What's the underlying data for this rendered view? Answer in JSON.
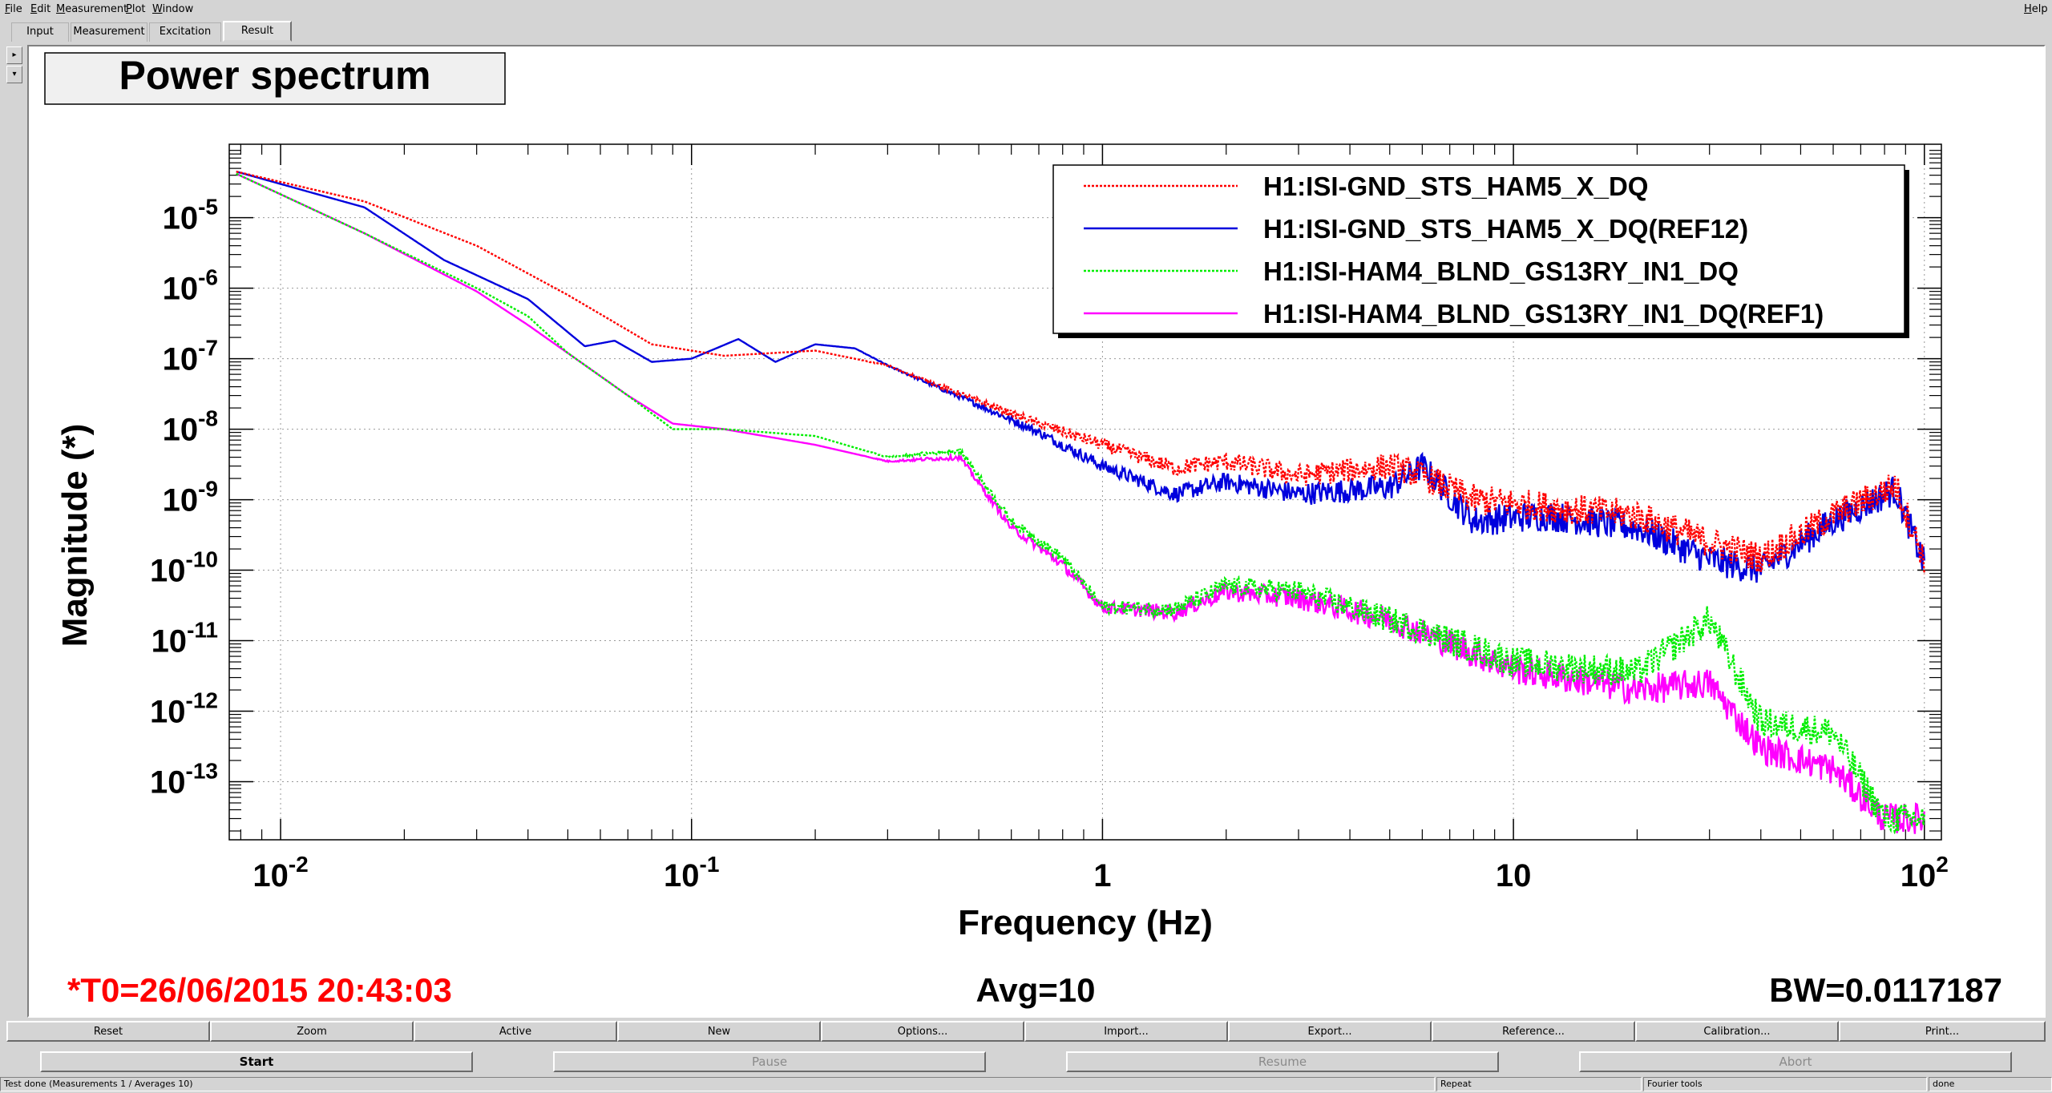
{
  "menubar": {
    "items": [
      "File",
      "Edit",
      "Measurement",
      "Plot",
      "Window"
    ],
    "help": "Help"
  },
  "tabs": [
    "Input",
    "Measurement",
    "Excitation",
    "Result"
  ],
  "active_tab": "Result",
  "plot": {
    "title": "Power spectrum",
    "footer": {
      "t0": "*T0=26/06/2015 20:43:03",
      "avg": "Avg=10",
      "bw": "BW=0.0117187"
    },
    "colors": {
      "ch1": "#ff0000",
      "ch2": "#0000dd",
      "ch3": "#00ee00",
      "ch4": "#ff00ff",
      "t0_text": "#ff0000"
    }
  },
  "chart_data": {
    "type": "line",
    "title": "",
    "xlabel": "Frequency (Hz)",
    "ylabel": "Magnitude (*)",
    "x_scale": "log",
    "y_scale": "log",
    "xlim": [
      0.0075,
      110
    ],
    "ylim": [
      1.5e-14,
      0.00011
    ],
    "x_tick_labels": [
      {
        "base": "10",
        "exp": "-2"
      },
      {
        "base": "10",
        "exp": "-1"
      },
      {
        "base": "1",
        "exp": ""
      },
      {
        "base": "10",
        "exp": ""
      },
      {
        "base": "10",
        "exp": "2"
      }
    ],
    "y_tick_labels": [
      {
        "base": "10",
        "exp": "-13"
      },
      {
        "base": "10",
        "exp": "-12"
      },
      {
        "base": "10",
        "exp": "-11"
      },
      {
        "base": "10",
        "exp": "-10"
      },
      {
        "base": "10",
        "exp": "-9"
      },
      {
        "base": "10",
        "exp": "-8"
      },
      {
        "base": "10",
        "exp": "-7"
      },
      {
        "base": "10",
        "exp": "-6"
      },
      {
        "base": "10",
        "exp": "-5"
      }
    ],
    "grid": true,
    "legend_position": "top-right",
    "series": [
      {
        "name": "H1:ISI-GND_STS_HAM5_X_DQ",
        "style": "dotted",
        "points": [
          [
            0.0078,
            4.5e-05
          ],
          [
            0.016,
            1.7e-05
          ],
          [
            0.03,
            4e-06
          ],
          [
            0.05,
            8e-07
          ],
          [
            0.08,
            1.6e-07
          ],
          [
            0.12,
            1.1e-07
          ],
          [
            0.2,
            1.3e-07
          ],
          [
            0.3,
            8e-08
          ],
          [
            0.5,
            2.5e-08
          ],
          [
            0.7,
            1.2e-08
          ],
          [
            1,
            6e-09
          ],
          [
            1.5,
            2.8e-09
          ],
          [
            2,
            3.5e-09
          ],
          [
            3,
            2.2e-09
          ],
          [
            5,
            3e-09
          ],
          [
            6,
            2.2e-09
          ],
          [
            8,
            1e-09
          ],
          [
            12,
            8e-10
          ],
          [
            20,
            6e-10
          ],
          [
            30,
            2.5e-10
          ],
          [
            40,
            1.5e-10
          ],
          [
            60,
            6e-10
          ],
          [
            85,
            1.6e-09
          ],
          [
            100,
            1.4e-10
          ]
        ]
      },
      {
        "name": "H1:ISI-GND_STS_HAM5_X_DQ(REF12)",
        "style": "solid",
        "points": [
          [
            0.0078,
            4.5e-05
          ],
          [
            0.016,
            1.4e-05
          ],
          [
            0.025,
            2.5e-06
          ],
          [
            0.04,
            7e-07
          ],
          [
            0.055,
            1.5e-07
          ],
          [
            0.065,
            1.8e-07
          ],
          [
            0.08,
            9e-08
          ],
          [
            0.1,
            1e-07
          ],
          [
            0.13,
            1.9e-07
          ],
          [
            0.16,
            9e-08
          ],
          [
            0.2,
            1.6e-07
          ],
          [
            0.25,
            1.4e-07
          ],
          [
            0.3,
            8e-08
          ],
          [
            0.5,
            2.2e-08
          ],
          [
            0.7,
            9e-09
          ],
          [
            1,
            3e-09
          ],
          [
            1.5,
            1.2e-09
          ],
          [
            2,
            1.8e-09
          ],
          [
            3,
            1.2e-09
          ],
          [
            5,
            1.5e-09
          ],
          [
            6,
            3e-09
          ],
          [
            8,
            5e-10
          ],
          [
            12,
            6e-10
          ],
          [
            20,
            4e-10
          ],
          [
            30,
            1.4e-10
          ],
          [
            40,
            1e-10
          ],
          [
            60,
            5e-10
          ],
          [
            85,
            1.4e-09
          ],
          [
            100,
            1.2e-10
          ]
        ]
      },
      {
        "name": "H1:ISI-HAM4_BLND_GS13RY_IN1_DQ",
        "style": "dotted",
        "points": [
          [
            0.0078,
            4.2e-05
          ],
          [
            0.016,
            6e-06
          ],
          [
            0.03,
            1e-06
          ],
          [
            0.04,
            4e-07
          ],
          [
            0.05,
            1.2e-07
          ],
          [
            0.07,
            3e-08
          ],
          [
            0.09,
            1e-08
          ],
          [
            0.12,
            1e-08
          ],
          [
            0.2,
            8e-09
          ],
          [
            0.3,
            4e-09
          ],
          [
            0.45,
            5e-09
          ],
          [
            0.6,
            5e-10
          ],
          [
            0.8,
            1.5e-10
          ],
          [
            1,
            3e-11
          ],
          [
            1.5,
            2.8e-11
          ],
          [
            2,
            6e-11
          ],
          [
            3,
            5e-11
          ],
          [
            5,
            2e-11
          ],
          [
            10,
            5e-12
          ],
          [
            20,
            3.5e-12
          ],
          [
            30,
            2e-11
          ],
          [
            40,
            7e-13
          ],
          [
            60,
            5e-13
          ],
          [
            80,
            3e-14
          ],
          [
            100,
            3e-14
          ]
        ]
      },
      {
        "name": "H1:ISI-HAM4_BLND_GS13RY_IN1_DQ(REF1)",
        "style": "solid",
        "points": [
          [
            0.0078,
            4.2e-05
          ],
          [
            0.016,
            6e-06
          ],
          [
            0.03,
            9e-07
          ],
          [
            0.04,
            3e-07
          ],
          [
            0.05,
            1.2e-07
          ],
          [
            0.07,
            3e-08
          ],
          [
            0.09,
            1.2e-08
          ],
          [
            0.12,
            1e-08
          ],
          [
            0.2,
            6e-09
          ],
          [
            0.3,
            3.5e-09
          ],
          [
            0.45,
            4e-09
          ],
          [
            0.6,
            4e-10
          ],
          [
            0.8,
            1.2e-10
          ],
          [
            1,
            3e-11
          ],
          [
            1.5,
            2.5e-11
          ],
          [
            2,
            5e-11
          ],
          [
            3,
            4e-11
          ],
          [
            5,
            2e-11
          ],
          [
            10,
            4e-12
          ],
          [
            20,
            2e-12
          ],
          [
            30,
            2.5e-12
          ],
          [
            40,
            3e-13
          ],
          [
            60,
            1.5e-13
          ],
          [
            80,
            3e-14
          ],
          [
            100,
            3e-14
          ]
        ]
      }
    ]
  },
  "buttons_row1": [
    "Reset",
    "Zoom",
    "Active",
    "New",
    "Options...",
    "Import...",
    "Export...",
    "Reference...",
    "Calibration...",
    "Print..."
  ],
  "buttons_row2": {
    "start": "Start",
    "pause": "Pause",
    "resume": "Resume",
    "abort": "Abort"
  },
  "statusbar": {
    "message": "Test done (Measurements 1 / Averages 10)",
    "repeat": "Repeat",
    "tool": "Fourier tools",
    "state": "done"
  }
}
